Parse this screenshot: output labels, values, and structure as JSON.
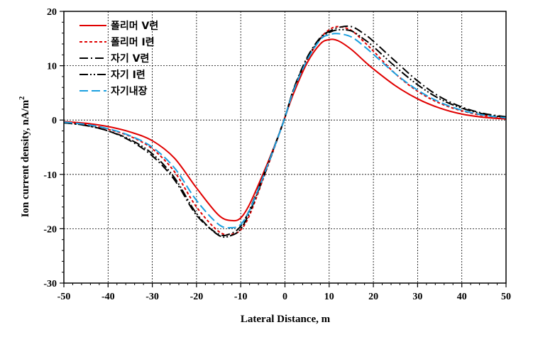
{
  "chart_data": {
    "type": "line",
    "title": "",
    "xlabel": "Lateral Distance, m",
    "ylabel_main": "Ion current  density,  nA/m",
    "ylabel_sup": "2",
    "xlim": [
      -50,
      50
    ],
    "ylim": [
      -30,
      20
    ],
    "xticks": [
      -50,
      -40,
      -30,
      -20,
      -10,
      0,
      10,
      20,
      30,
      40,
      50
    ],
    "yticks": [
      -30,
      -20,
      -10,
      0,
      10,
      20
    ],
    "xtick_labels": [
      "-50",
      "-40",
      "-30",
      "-20",
      "-10",
      "0",
      "10",
      "20",
      "30",
      "40",
      "50"
    ],
    "ytick_labels": [
      "-30",
      "-20",
      "-10",
      "0",
      "10",
      "20"
    ],
    "grid": true,
    "legend_position": "top-left",
    "x": [
      -50,
      -45,
      -40,
      -35,
      -30,
      -25,
      -20,
      -15,
      -12,
      -10,
      -8,
      -5,
      -2,
      0,
      2,
      5,
      8,
      10,
      12,
      15,
      18,
      20,
      25,
      30,
      35,
      40,
      45,
      50
    ],
    "series": [
      {
        "name": "폴리머 V련",
        "color": "#e00000",
        "dash": "solid",
        "values": [
          -0.3,
          -0.6,
          -1.2,
          -2.2,
          -3.8,
          -7.0,
          -12.5,
          -17.5,
          -18.5,
          -18.0,
          -15.5,
          -10.0,
          -4.0,
          0.5,
          5.0,
          10.5,
          14.0,
          14.8,
          14.6,
          13.0,
          10.8,
          9.4,
          6.3,
          3.9,
          2.2,
          1.1,
          0.5,
          0.2
        ]
      },
      {
        "name": "폴리머 I련",
        "color": "#e00000",
        "dash": "4,3",
        "values": [
          -0.4,
          -0.8,
          -1.7,
          -3.0,
          -5.3,
          -9.5,
          -16.0,
          -20.5,
          -21.0,
          -20.2,
          -17.5,
          -11.0,
          -4.2,
          0.5,
          5.5,
          11.0,
          15.0,
          16.6,
          17.2,
          16.5,
          14.3,
          12.7,
          8.5,
          5.3,
          3.1,
          1.7,
          0.8,
          0.4
        ]
      },
      {
        "name": "자기 V련",
        "color": "#000000",
        "dash": "12,4,2,4",
        "values": [
          -0.5,
          -1.0,
          -2.0,
          -3.8,
          -6.6,
          -11.0,
          -17.5,
          -21.0,
          -20.8,
          -19.5,
          -16.5,
          -10.5,
          -4.0,
          0.5,
          5.8,
          11.5,
          15.2,
          16.3,
          17.0,
          17.2,
          15.8,
          14.5,
          10.8,
          7.2,
          4.3,
          2.4,
          1.2,
          0.6
        ]
      },
      {
        "name": "자기 I련",
        "color": "#000000",
        "dash": "12,3,2,3,2,3",
        "values": [
          -0.5,
          -1.0,
          -2.0,
          -3.6,
          -6.2,
          -10.6,
          -17.2,
          -21.2,
          -21.2,
          -20.0,
          -17.0,
          -10.8,
          -4.1,
          0.5,
          5.7,
          11.3,
          15.0,
          16.1,
          16.6,
          16.4,
          14.8,
          13.5,
          9.8,
          6.5,
          3.9,
          2.2,
          1.1,
          0.5
        ]
      },
      {
        "name": "자기내장",
        "color": "#1aa0e0",
        "dash": "12,5",
        "values": [
          -0.4,
          -0.8,
          -1.6,
          -2.9,
          -5.0,
          -8.8,
          -14.8,
          -19.2,
          -19.8,
          -19.2,
          -16.6,
          -10.6,
          -4.1,
          0.5,
          5.5,
          11.0,
          14.8,
          15.7,
          15.9,
          15.3,
          13.5,
          12.1,
          8.5,
          5.5,
          3.3,
          1.8,
          0.9,
          0.4
        ]
      }
    ]
  }
}
